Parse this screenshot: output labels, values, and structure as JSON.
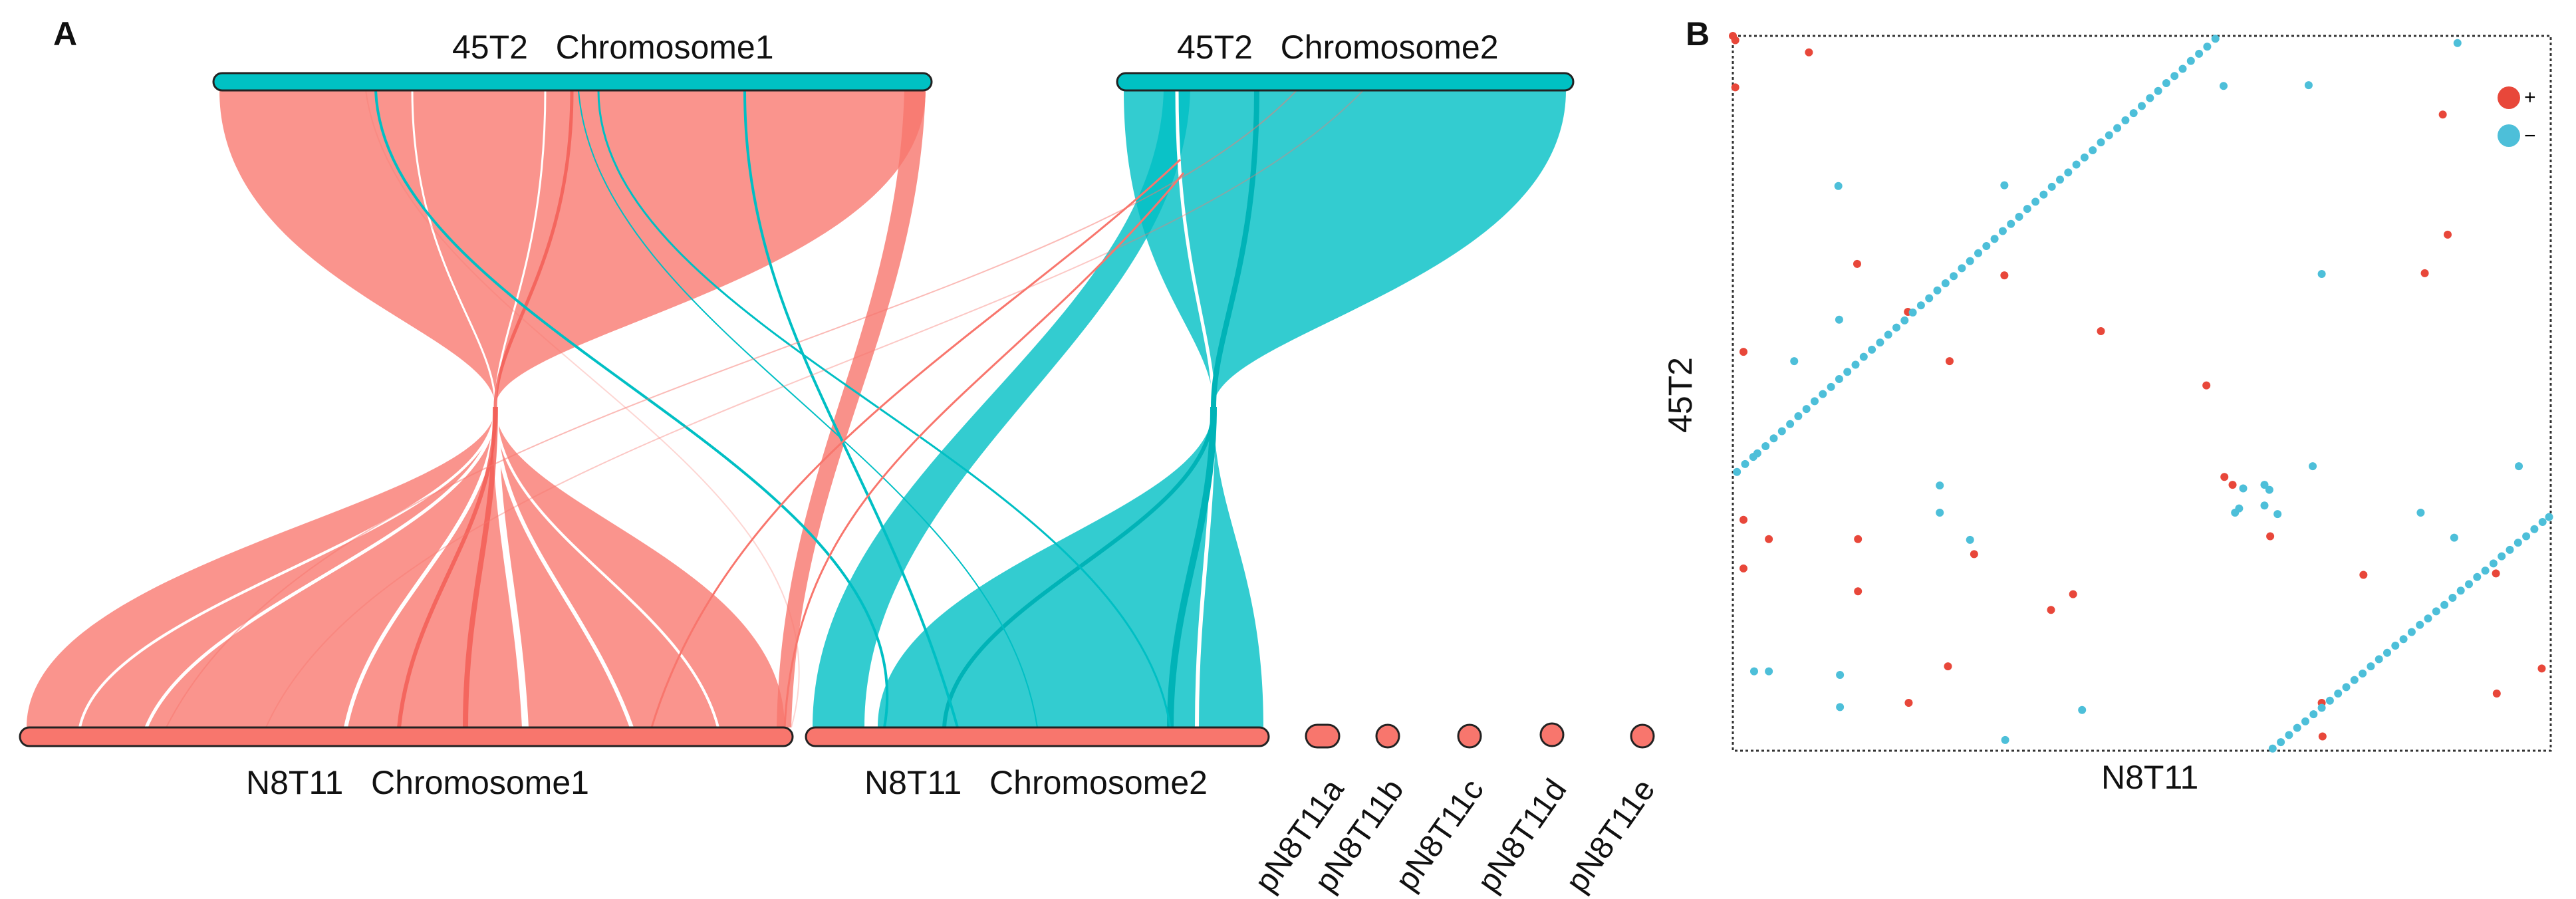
{
  "panel_a": {
    "label": "A",
    "top_chromosomes": [
      {
        "name": "45T2   Chromosome1",
        "color": "#00c1c3"
      },
      {
        "name": "45T2   Chromosome2",
        "color": "#00c1c3"
      }
    ],
    "bottom_chromosomes": [
      {
        "name": "N8T11   Chromosome1",
        "color": "#f8766d"
      },
      {
        "name": "N8T11   Chromosome2",
        "color": "#f8766d"
      }
    ],
    "plasmids": [
      "pN8T11a",
      "pN8T11b",
      "pN8T11c",
      "pN8T11d",
      "pN8T11e"
    ],
    "colors": {
      "red_ribbon": "#f8766d",
      "teal_ribbon": "#00bfc4"
    }
  },
  "panel_b": {
    "label": "B"
  },
  "chart_data": [
    {
      "type": "scatter",
      "title": "",
      "xlabel": "N8T11",
      "ylabel": "45T2",
      "xlim": [
        0,
        100
      ],
      "ylim": [
        0,
        100
      ],
      "grid": false,
      "legend_position": "top-right",
      "series": [
        {
          "name": "+",
          "color": "#e8473a",
          "points": [
            [
              0,
              100
            ],
            [
              0.3,
              99.4
            ],
            [
              9.3,
              97.7
            ],
            [
              0.3,
              92.8
            ],
            [
              15.2,
              68.1
            ],
            [
              33.2,
              66.5
            ],
            [
              21.4,
              61.4
            ],
            [
              45.0,
              58.7
            ],
            [
              1.3,
              55.8
            ],
            [
              26.5,
              54.5
            ],
            [
              57.9,
              51.1
            ],
            [
              60.1,
              38.3
            ],
            [
              61.1,
              37.2
            ],
            [
              1.3,
              32.3
            ],
            [
              4.4,
              29.6
            ],
            [
              15.3,
              29.6
            ],
            [
              65.7,
              30.0
            ],
            [
              29.5,
              27.5
            ],
            [
              1.3,
              25.5
            ],
            [
              77.1,
              24.6
            ],
            [
              93.3,
              24.8
            ],
            [
              15.3,
              22.3
            ],
            [
              41.6,
              21.9
            ],
            [
              38.9,
              19.7
            ],
            [
              26.3,
              11.8
            ],
            [
              21.5,
              6.7
            ],
            [
              72.0,
              6.7
            ],
            [
              72.1,
              2.0
            ],
            [
              93.4,
              8.0
            ],
            [
              98.9,
              11.5
            ],
            [
              86.8,
              89.0
            ],
            [
              87.4,
              72.2
            ],
            [
              84.6,
              66.8
            ]
          ]
        },
        {
          "name": "−",
          "color": "#4dbfd9",
          "points": [
            [
              0.5,
              39.0
            ],
            [
              1.5,
              40.1
            ],
            [
              2.5,
              41.1
            ],
            [
              3,
              41.6
            ],
            [
              4,
              42.6
            ],
            [
              5,
              43.7
            ],
            [
              6,
              44.7
            ],
            [
              7,
              45.7
            ],
            [
              8,
              46.8
            ],
            [
              9,
              47.8
            ],
            [
              10,
              48.9
            ],
            [
              11,
              49.9
            ],
            [
              12,
              50.9
            ],
            [
              13,
              52.0
            ],
            [
              14,
              53.0
            ],
            [
              15,
              54.0
            ],
            [
              16,
              55.1
            ],
            [
              17,
              56.1
            ],
            [
              18,
              57.1
            ],
            [
              19,
              58.2
            ],
            [
              20,
              59.2
            ],
            [
              21,
              60.2
            ],
            [
              22,
              61.3
            ],
            [
              23,
              62.3
            ],
            [
              24,
              63.3
            ],
            [
              25,
              64.4
            ],
            [
              26,
              65.4
            ],
            [
              27,
              66.4
            ],
            [
              28,
              67.5
            ],
            [
              29,
              68.5
            ],
            [
              30,
              69.6
            ],
            [
              31,
              70.6
            ],
            [
              32,
              71.6
            ],
            [
              33,
              72.7
            ],
            [
              34,
              73.7
            ],
            [
              35,
              74.7
            ],
            [
              36,
              75.8
            ],
            [
              37,
              76.8
            ],
            [
              38,
              77.8
            ],
            [
              39,
              78.9
            ],
            [
              40,
              79.9
            ],
            [
              41,
              80.9
            ],
            [
              42,
              82.0
            ],
            [
              43,
              83.0
            ],
            [
              44,
              84.0
            ],
            [
              45,
              85.1
            ],
            [
              46,
              86.1
            ],
            [
              47,
              87.1
            ],
            [
              48,
              88.2
            ],
            [
              49,
              89.2
            ],
            [
              50,
              90.2
            ],
            [
              51,
              91.3
            ],
            [
              52,
              92.3
            ],
            [
              53,
              93.4
            ],
            [
              54,
              94.4
            ],
            [
              55,
              95.4
            ],
            [
              56,
              96.5
            ],
            [
              57,
              97.5
            ],
            [
              58,
              98.5
            ],
            [
              59,
              99.6
            ],
            [
              66,
              0.3
            ],
            [
              67,
              1.2
            ],
            [
              68,
              2.2
            ],
            [
              69,
              3.2
            ],
            [
              70,
              4.1
            ],
            [
              71,
              5.1
            ],
            [
              72,
              6.0
            ],
            [
              73,
              7.0
            ],
            [
              74,
              8.0
            ],
            [
              75,
              8.9
            ],
            [
              76,
              9.9
            ],
            [
              77,
              10.8
            ],
            [
              78,
              11.8
            ],
            [
              79,
              12.8
            ],
            [
              80,
              13.7
            ],
            [
              81,
              14.7
            ],
            [
              82,
              15.6
            ],
            [
              83,
              16.6
            ],
            [
              84,
              17.6
            ],
            [
              85,
              18.5
            ],
            [
              86,
              19.5
            ],
            [
              87,
              20.4
            ],
            [
              88,
              21.4
            ],
            [
              89,
              22.4
            ],
            [
              90,
              23.3
            ],
            [
              91,
              24.3
            ],
            [
              92,
              25.2
            ],
            [
              93,
              26.2
            ],
            [
              94,
              27.2
            ],
            [
              95,
              28.1
            ],
            [
              96,
              29.1
            ],
            [
              97,
              30.0
            ],
            [
              98,
              31.0
            ],
            [
              99,
              32.0
            ],
            [
              99.8,
              32.7
            ],
            [
              88.6,
              99.0
            ],
            [
              60.0,
              93.0
            ],
            [
              70.4,
              93.1
            ],
            [
              12.9,
              79.0
            ],
            [
              33.2,
              79.1
            ],
            [
              72.0,
              66.7
            ],
            [
              13.0,
              60.3
            ],
            [
              7.5,
              54.5
            ],
            [
              25.3,
              37.1
            ],
            [
              25.3,
              33.3
            ],
            [
              29.0,
              29.5
            ],
            [
              70.9,
              39.8
            ],
            [
              96.1,
              39.8
            ],
            [
              84.1,
              33.3
            ],
            [
              88.2,
              29.8
            ],
            [
              2.6,
              11.1
            ],
            [
              4.4,
              11.1
            ],
            [
              13.1,
              10.6
            ],
            [
              13.1,
              6.1
            ],
            [
              42.7,
              5.7
            ],
            [
              33.3,
              1.5
            ],
            [
              66.6,
              33.1
            ],
            [
              62.4,
              36.7
            ],
            [
              65.0,
              37.2
            ],
            [
              65.6,
              36.5
            ],
            [
              65.0,
              34.3
            ],
            [
              61.4,
              33.3
            ],
            [
              61.9,
              33.9
            ]
          ]
        }
      ]
    }
  ]
}
